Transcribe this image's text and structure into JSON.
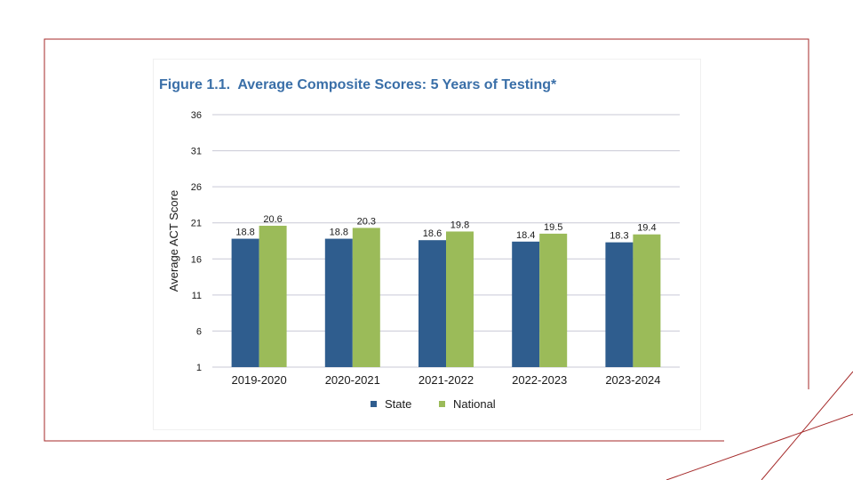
{
  "colors": {
    "frame": "#a52a2a",
    "state": "#2f5d8e",
    "national": "#9bbb59",
    "grid": "#c9c9d6",
    "title": "#3a6fa8"
  },
  "chart_data": {
    "type": "bar",
    "title": "Figure 1.1.  Average Composite Scores: 5 Years of Testing*",
    "xlabel": "",
    "ylabel": "Average ACT Score",
    "ylim": [
      1,
      36
    ],
    "yticks": [
      1,
      6,
      11,
      16,
      21,
      26,
      31,
      36
    ],
    "grid": true,
    "legend_position": "bottom",
    "categories": [
      "2019-2020",
      "2020-2021",
      "2021-2022",
      "2022-2023",
      "2023-2024"
    ],
    "series": [
      {
        "name": "State",
        "color": "#2f5d8e",
        "values": [
          18.8,
          18.8,
          18.6,
          18.4,
          18.3
        ]
      },
      {
        "name": "National",
        "color": "#9bbb59",
        "values": [
          20.6,
          20.3,
          19.8,
          19.5,
          19.4
        ]
      }
    ]
  }
}
